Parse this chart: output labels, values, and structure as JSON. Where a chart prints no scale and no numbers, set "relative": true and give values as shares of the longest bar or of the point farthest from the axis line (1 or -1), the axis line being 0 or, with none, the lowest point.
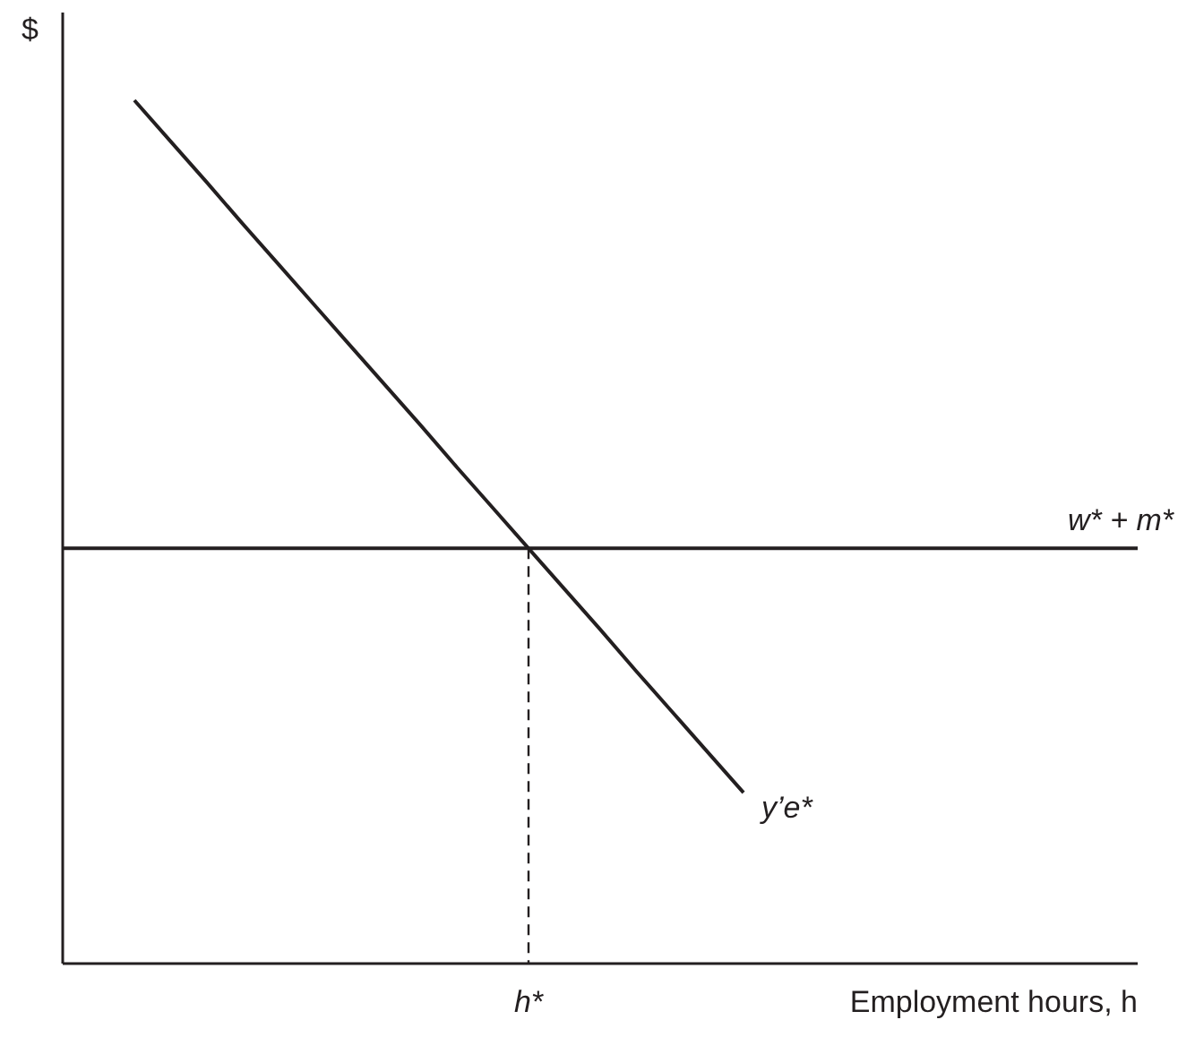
{
  "chart_data": {
    "type": "line",
    "relative": true,
    "ylabel": "$",
    "xlabel": "Employment hours, h",
    "marker": "none",
    "categories": [
      null,
      null,
      null,
      null,
      null,
      null,
      null,
      null,
      null,
      null,
      null,
      null,
      null,
      null,
      null,
      null,
      null,
      null,
      null,
      null,
      null,
      null,
      null,
      null,
      null,
      null,
      null,
      null,
      null,
      null,
      null
    ],
    "series": [
      {
        "name": "y’e*",
        "color": "#231f20",
        "values": [
          null,
          null,
          1,
          0.953,
          0.906,
          0.858,
          0.811,
          0.764,
          0.717,
          0.67,
          0.623,
          0.575,
          0.528,
          0.481,
          0.434,
          0.387,
          0.339,
          0.292,
          0.245,
          0.198,
          null,
          null,
          null,
          null,
          null,
          null,
          null,
          null,
          null,
          null,
          null
        ]
      },
      {
        "name": "w* + m*",
        "color": "#231f20",
        "values": [
          0.481,
          0.481,
          0.481,
          0.481,
          0.481,
          0.481,
          0.481,
          0.481,
          0.481,
          0.481,
          0.481,
          0.481,
          0.481,
          0.481,
          0.481,
          0.481,
          0.481,
          0.481,
          0.481,
          0.481,
          0.481,
          0.481,
          0.481,
          0.481,
          0.481,
          0.481,
          0.481,
          0.481,
          0.481,
          0.481,
          0.481
        ]
      }
    ],
    "annotations": [
      "h*"
    ]
  }
}
